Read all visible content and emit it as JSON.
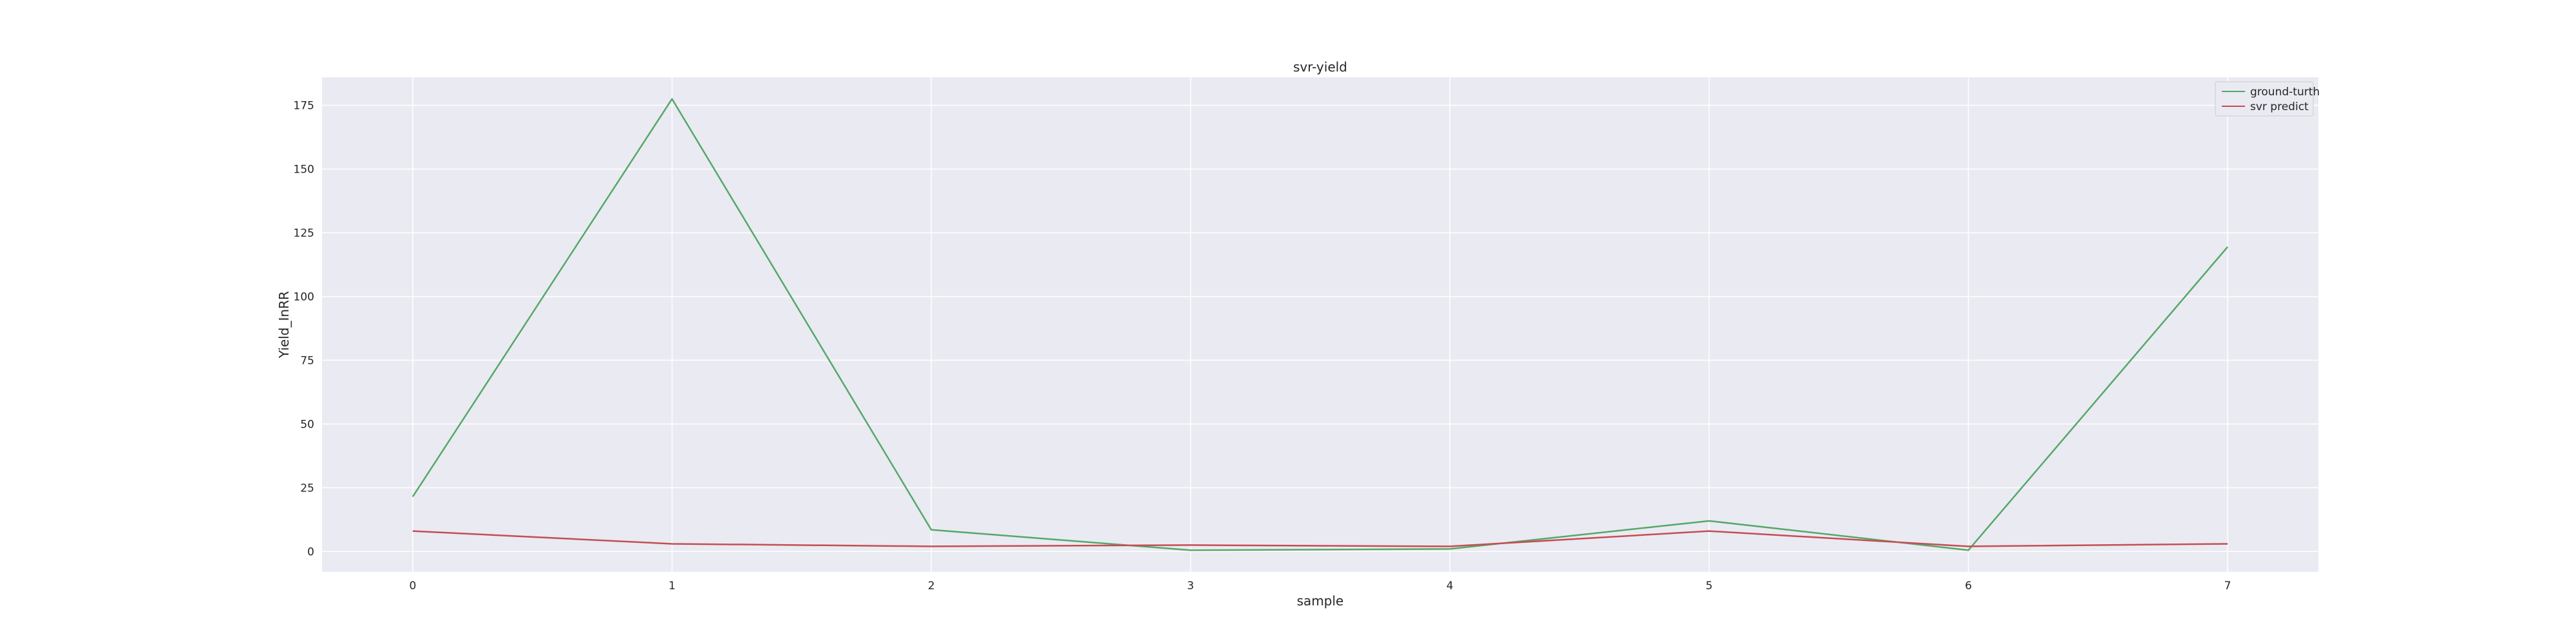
{
  "chart_data": {
    "type": "line",
    "title": "svr-yield",
    "xlabel": "sample",
    "ylabel": "Yield_InRR",
    "x": [
      0,
      1,
      2,
      3,
      4,
      5,
      6,
      7
    ],
    "xticks": [
      0,
      1,
      2,
      3,
      4,
      5,
      6,
      7
    ],
    "yticks": [
      0,
      25,
      50,
      75,
      100,
      125,
      150,
      175
    ],
    "xlim": [
      -0.35,
      7.35
    ],
    "ylim": [
      -8,
      186
    ],
    "grid": true,
    "legend_position": "top-right",
    "background_color": "#eaeaf2",
    "grid_color": "#ffffff",
    "series": [
      {
        "name": "ground-turth",
        "color": "#55a868",
        "values": [
          21.5,
          177.5,
          8.5,
          0.5,
          1.0,
          12.0,
          0.5,
          119.5
        ]
      },
      {
        "name": "svr predict",
        "color": "#c44e52",
        "values": [
          8.0,
          3.0,
          2.0,
          2.5,
          2.0,
          8.0,
          2.0,
          3.0
        ]
      }
    ]
  }
}
